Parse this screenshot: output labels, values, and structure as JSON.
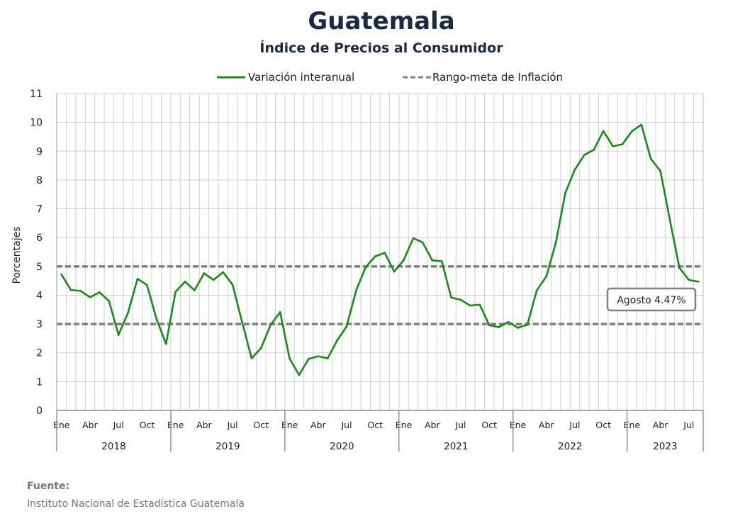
{
  "chart_data": {
    "type": "line",
    "title": "Guatemala",
    "subtitle": "Índice de Precios al Consumidor",
    "ylabel": "Porcentajes",
    "xlabel": "",
    "ylim": [
      0,
      11
    ],
    "yticks": [
      "0",
      "1",
      "2",
      "3",
      "4",
      "5",
      "6",
      "7",
      "8",
      "9",
      "10",
      "11"
    ],
    "grid": true,
    "legend_position": "top-center",
    "month_ticks": [
      "Ene",
      "Abr",
      "Jul",
      "Oct"
    ],
    "years": [
      "2018",
      "2019",
      "2020",
      "2021",
      "2022",
      "2023"
    ],
    "x": [
      "2018-01",
      "2018-02",
      "2018-03",
      "2018-04",
      "2018-05",
      "2018-06",
      "2018-07",
      "2018-08",
      "2018-09",
      "2018-10",
      "2018-11",
      "2018-12",
      "2019-01",
      "2019-02",
      "2019-03",
      "2019-04",
      "2019-05",
      "2019-06",
      "2019-07",
      "2019-08",
      "2019-09",
      "2019-10",
      "2019-11",
      "2019-12",
      "2020-01",
      "2020-02",
      "2020-03",
      "2020-04",
      "2020-05",
      "2020-06",
      "2020-07",
      "2020-08",
      "2020-09",
      "2020-10",
      "2020-11",
      "2020-12",
      "2021-01",
      "2021-02",
      "2021-03",
      "2021-04",
      "2021-05",
      "2021-06",
      "2021-07",
      "2021-08",
      "2021-09",
      "2021-10",
      "2021-11",
      "2021-12",
      "2022-01",
      "2022-02",
      "2022-03",
      "2022-04",
      "2022-05",
      "2022-06",
      "2022-07",
      "2022-08",
      "2022-09",
      "2022-10",
      "2022-11",
      "2022-12",
      "2023-01",
      "2023-02",
      "2023-03",
      "2023-04",
      "2023-05",
      "2023-06",
      "2023-07",
      "2023-08"
    ],
    "series": [
      {
        "name": "Variación interanual",
        "color": "#1a8a1a",
        "style": "solid",
        "values": [
          4.72,
          4.18,
          4.15,
          3.93,
          4.1,
          3.8,
          2.62,
          3.39,
          4.57,
          4.35,
          3.17,
          2.31,
          4.12,
          4.47,
          4.17,
          4.76,
          4.53,
          4.8,
          4.36,
          3.07,
          1.81,
          2.17,
          2.97,
          3.41,
          1.8,
          1.23,
          1.79,
          1.88,
          1.81,
          2.43,
          2.92,
          4.17,
          4.97,
          5.35,
          5.47,
          4.82,
          5.22,
          5.98,
          5.83,
          5.21,
          5.18,
          3.92,
          3.84,
          3.64,
          3.67,
          2.96,
          2.89,
          3.07,
          2.87,
          2.97,
          4.17,
          4.65,
          5.82,
          7.55,
          8.36,
          8.87,
          9.05,
          9.7,
          9.17,
          9.24,
          9.69,
          9.92,
          8.73,
          8.31,
          6.61,
          4.95,
          4.53,
          4.47
        ]
      },
      {
        "name": "Rango-meta de Inflación",
        "color": "#808080",
        "style": "dashed",
        "lower": 3,
        "upper": 5
      }
    ],
    "annotations": [
      {
        "text": "Agosto 4.47%",
        "at": "2023-08"
      }
    ]
  },
  "source": {
    "heading": "Fuente:",
    "text": "Instituto Nacional de Estadística Guatemala"
  }
}
